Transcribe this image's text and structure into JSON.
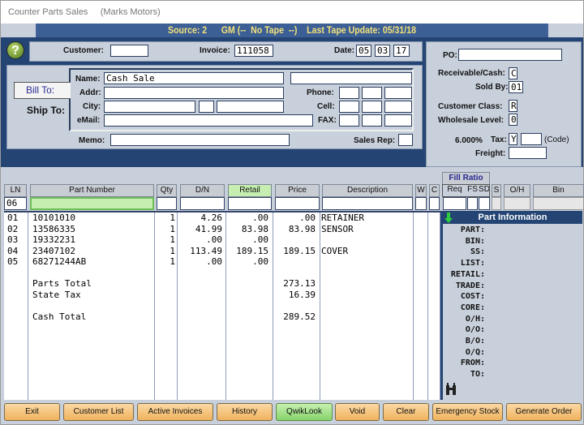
{
  "window": {
    "title": "Counter Parts Sales",
    "company": "(Marks Motors)"
  },
  "source_bar": "Source: 2      GM (--  No Tape  --)    Last Tape Update: 05/31/18",
  "header": {
    "customer_label": "Customer:",
    "customer": "",
    "invoice_label": "Invoice:",
    "invoice": "111058",
    "date_label": "Date:",
    "date": [
      "05",
      "03",
      "17"
    ]
  },
  "bill": {
    "bill_to": "Bill To:",
    "ship_to": "Ship To:",
    "name_label": "Name:",
    "name": "Cash Sale",
    "addr_label": "Addr:",
    "city_label": "City:",
    "email_label": "eMail:",
    "phone_label": "Phone:",
    "cell_label": "Cell:",
    "fax_label": "FAX:",
    "memo_label": "Memo:",
    "sales_rep_label": "Sales Rep:"
  },
  "right": {
    "po_label": "PO:",
    "po": "",
    "recv_label": "Receivable/Cash:",
    "recv": "C",
    "sold_by_label": "Sold By:",
    "sold_by": "01",
    "class_label": "Customer Class:",
    "class": "R",
    "wholesale_label": "Wholesale Level:",
    "wholesale": "0",
    "tax_rate": "6.000%",
    "tax_label": "Tax:",
    "tax": "Y",
    "code_label": "(Code)",
    "freight_label": "Freight:"
  },
  "columns": {
    "fill_ratio": "Fill Ratio",
    "ln": "LN",
    "part": "Part Number",
    "qty": "Qty",
    "dn": "D/N",
    "retail": "Retail",
    "price": "Price",
    "desc": "Description",
    "w": "W",
    "c": "C",
    "req": "Req",
    "fs": "FS",
    "sd": "SD",
    "s": "S",
    "oh": "O/H",
    "bin": "Bin"
  },
  "entry": {
    "ln": "06"
  },
  "rows": [
    {
      "ln": "01",
      "part": "10101010",
      "qty": "1",
      "dn": "4.26",
      "retail": ".00",
      "price": ".00",
      "desc": "RETAINER"
    },
    {
      "ln": "02",
      "part": "13586335",
      "qty": "1",
      "dn": "41.99",
      "retail": "83.98",
      "price": "83.98",
      "desc": "SENSOR"
    },
    {
      "ln": "03",
      "part": "19332231",
      "qty": "1",
      "dn": ".00",
      "retail": ".00",
      "price": "",
      "desc": ""
    },
    {
      "ln": "04",
      "part": "23407102",
      "qty": "1",
      "dn": "113.49",
      "retail": "189.15",
      "price": "189.15",
      "desc": "COVER"
    },
    {
      "ln": "05",
      "part": "68271244AB",
      "qty": "1",
      "dn": ".00",
      "retail": ".00",
      "price": "",
      "desc": ""
    }
  ],
  "totals": [
    {
      "label": "Parts Total",
      "value": "273.13"
    },
    {
      "label": "State Tax",
      "value": "16.39"
    },
    {
      "label": "Cash Total",
      "value": "289.52"
    }
  ],
  "part_info": {
    "title": "Part Information",
    "labels": [
      "PART:",
      "BIN:",
      "SS:",
      "LIST:",
      "RETAIL:",
      "TRADE:",
      "COST:",
      "CORE:",
      "O/H:",
      "O/O:",
      "B/O:",
      "O/Q:",
      "FROM:",
      "TO:"
    ]
  },
  "buttons": [
    "Exit",
    "Customer List",
    "Active Invoices",
    "History",
    "QwikLook",
    "Void",
    "Clear",
    "Emergency Stock",
    "Generate Order"
  ],
  "colors": {
    "header_blue": "#244574",
    "source_text": "#f3e27a",
    "button": "#f0b25d",
    "qwiklook": "#86d36a",
    "retail_highlight": "#c5eeb0"
  },
  "icons": {
    "help": "help-question-icon",
    "arrow": "down-arrow-icon",
    "binoculars": "binoculars-icon"
  }
}
